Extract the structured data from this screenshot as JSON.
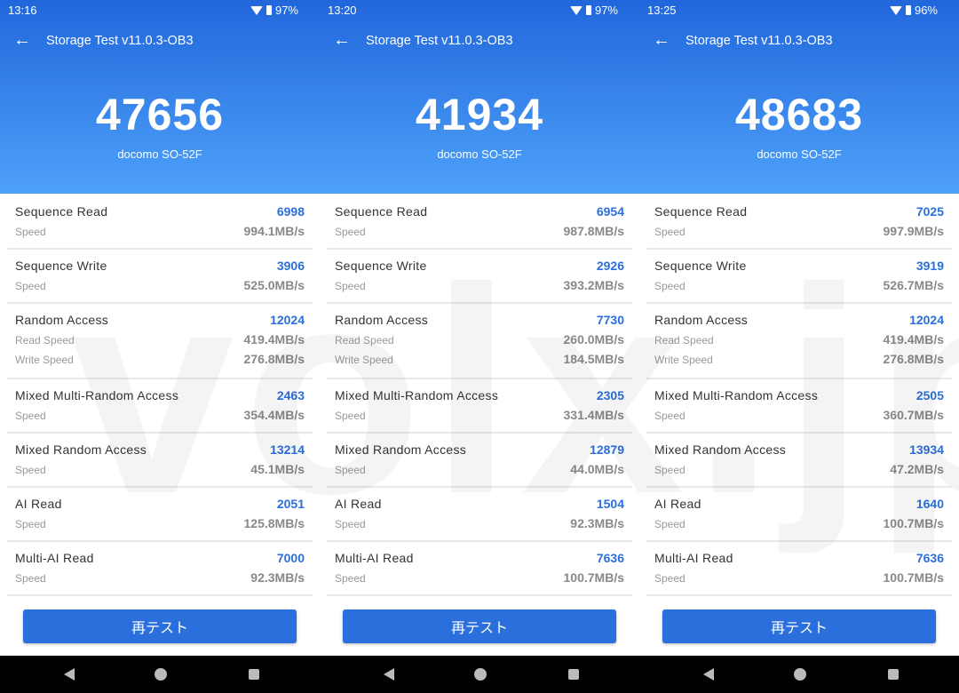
{
  "watermark": "volx.jp",
  "colors": {
    "accent": "#2a6fdc",
    "header_top": "#2167dc",
    "header_bottom": "#4ea1f9"
  },
  "app_title": "Storage Test v11.0.3-OB3",
  "retest_label": "再テスト",
  "panels": [
    {
      "time": "13:16",
      "battery": "97%",
      "score": "47656",
      "device": "docomo SO-52F",
      "rows": [
        {
          "name": "Sequence Read",
          "score": "6998",
          "subs": [
            {
              "label": "Speed",
              "value": "994.1MB/s"
            }
          ]
        },
        {
          "name": "Sequence Write",
          "score": "3906",
          "subs": [
            {
              "label": "Speed",
              "value": "525.0MB/s"
            }
          ]
        },
        {
          "name": "Random Access",
          "score": "12024",
          "subs": [
            {
              "label": "Read Speed",
              "value": "419.4MB/s"
            },
            {
              "label": "Write Speed",
              "value": "276.8MB/s"
            }
          ]
        },
        {
          "name": "Mixed Multi-Random Access",
          "score": "2463",
          "subs": [
            {
              "label": "Speed",
              "value": "354.4MB/s"
            }
          ]
        },
        {
          "name": "Mixed Random Access",
          "score": "13214",
          "subs": [
            {
              "label": "Speed",
              "value": "45.1MB/s"
            }
          ]
        },
        {
          "name": "AI Read",
          "score": "2051",
          "subs": [
            {
              "label": "Speed",
              "value": "125.8MB/s"
            }
          ]
        },
        {
          "name": "Multi-AI Read",
          "score": "7000",
          "subs": [
            {
              "label": "Speed",
              "value": "92.3MB/s"
            }
          ]
        }
      ]
    },
    {
      "time": "13:20",
      "battery": "97%",
      "score": "41934",
      "device": "docomo SO-52F",
      "rows": [
        {
          "name": "Sequence Read",
          "score": "6954",
          "subs": [
            {
              "label": "Speed",
              "value": "987.8MB/s"
            }
          ]
        },
        {
          "name": "Sequence Write",
          "score": "2926",
          "subs": [
            {
              "label": "Speed",
              "value": "393.2MB/s"
            }
          ]
        },
        {
          "name": "Random Access",
          "score": "7730",
          "subs": [
            {
              "label": "Read Speed",
              "value": "260.0MB/s"
            },
            {
              "label": "Write Speed",
              "value": "184.5MB/s"
            }
          ]
        },
        {
          "name": "Mixed Multi-Random Access",
          "score": "2305",
          "subs": [
            {
              "label": "Speed",
              "value": "331.4MB/s"
            }
          ]
        },
        {
          "name": "Mixed Random Access",
          "score": "12879",
          "subs": [
            {
              "label": "Speed",
              "value": "44.0MB/s"
            }
          ]
        },
        {
          "name": "AI Read",
          "score": "1504",
          "subs": [
            {
              "label": "Speed",
              "value": "92.3MB/s"
            }
          ]
        },
        {
          "name": "Multi-AI Read",
          "score": "7636",
          "subs": [
            {
              "label": "Speed",
              "value": "100.7MB/s"
            }
          ]
        }
      ]
    },
    {
      "time": "13:25",
      "battery": "96%",
      "score": "48683",
      "device": "docomo SO-52F",
      "rows": [
        {
          "name": "Sequence Read",
          "score": "7025",
          "subs": [
            {
              "label": "Speed",
              "value": "997.9MB/s"
            }
          ]
        },
        {
          "name": "Sequence Write",
          "score": "3919",
          "subs": [
            {
              "label": "Speed",
              "value": "526.7MB/s"
            }
          ]
        },
        {
          "name": "Random Access",
          "score": "12024",
          "subs": [
            {
              "label": "Read Speed",
              "value": "419.4MB/s"
            },
            {
              "label": "Write Speed",
              "value": "276.8MB/s"
            }
          ]
        },
        {
          "name": "Mixed Multi-Random Access",
          "score": "2505",
          "subs": [
            {
              "label": "Speed",
              "value": "360.7MB/s"
            }
          ]
        },
        {
          "name": "Mixed Random Access",
          "score": "13934",
          "subs": [
            {
              "label": "Speed",
              "value": "47.2MB/s"
            }
          ]
        },
        {
          "name": "AI Read",
          "score": "1640",
          "subs": [
            {
              "label": "Speed",
              "value": "100.7MB/s"
            }
          ]
        },
        {
          "name": "Multi-AI Read",
          "score": "7636",
          "subs": [
            {
              "label": "Speed",
              "value": "100.7MB/s"
            }
          ]
        }
      ]
    }
  ]
}
